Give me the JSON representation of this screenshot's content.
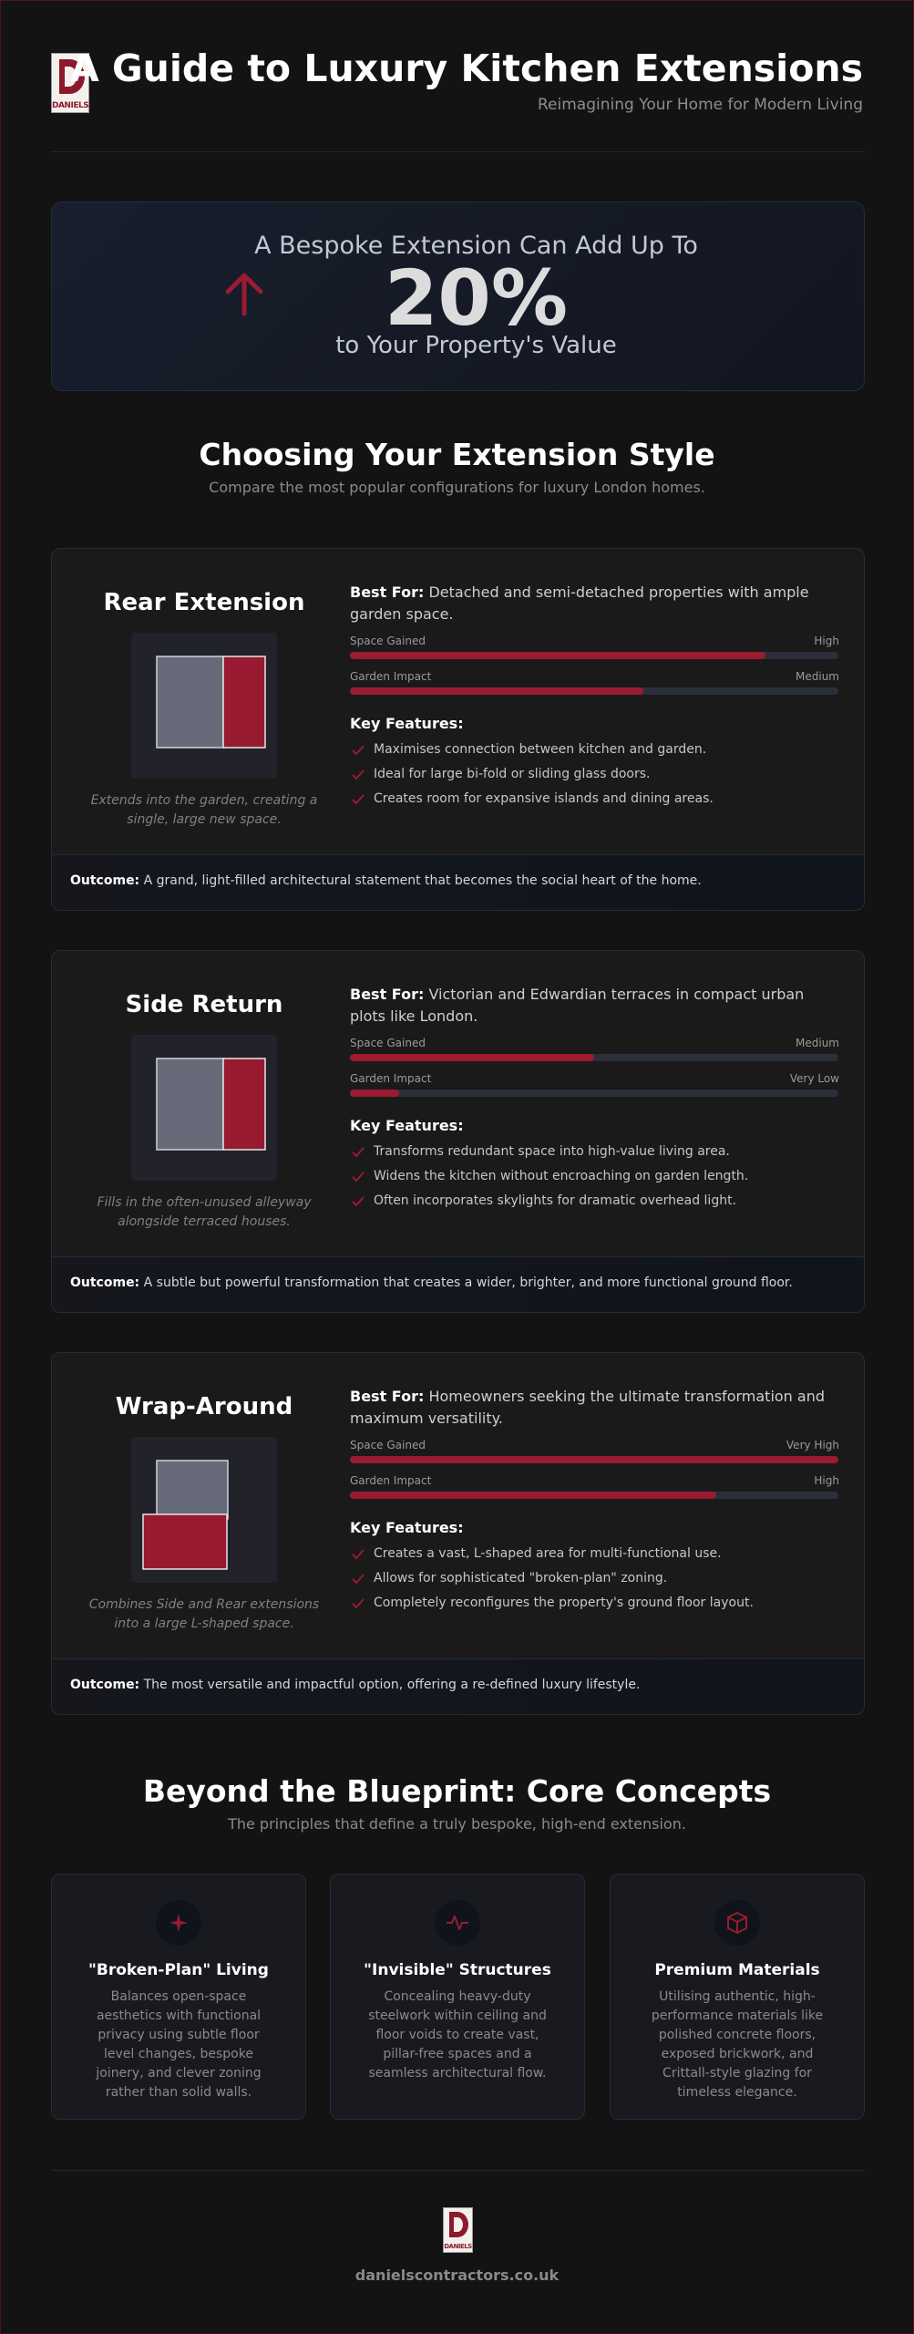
{
  "header": {
    "logo_text": "DANIELS",
    "title": "A Guide to Luxury Kitchen Extensions",
    "subtitle": "Reimagining Your Home for Modern Living"
  },
  "hero": {
    "lead": "A Bespoke Extension Can Add Up To",
    "figure": "20%",
    "tail": "to Your Property's Value"
  },
  "styles_section": {
    "title": "Choosing Your Extension Style",
    "subtitle": "Compare the most popular configurations for luxury London homes.",
    "best_for_label": "Best For:",
    "features_label": "Key Features:",
    "outcome_label": "Outcome:",
    "cards": [
      {
        "title": "Rear Extension",
        "caption": "Extends into the garden, creating a single, large new space.",
        "best_for": "Detached and semi-detached properties with ample garden space.",
        "meters": [
          {
            "label": "Space Gained",
            "level": "High",
            "fill": 85
          },
          {
            "label": "Garden Impact",
            "level": "Medium",
            "fill": 60
          }
        ],
        "features": [
          "Maximises connection between kitchen and garden.",
          "Ideal for large bi-fold or sliding glass doors.",
          "Creates room for expansive islands and dining areas."
        ],
        "outcome": "A grand, light-filled architectural statement that becomes the social heart of the home."
      },
      {
        "title": "Side Return",
        "caption": "Fills in the often-unused alleyway alongside terraced houses.",
        "best_for": "Victorian and Edwardian terraces in compact urban plots like London.",
        "meters": [
          {
            "label": "Space Gained",
            "level": "Medium",
            "fill": 50
          },
          {
            "label": "Garden Impact",
            "level": "Very Low",
            "fill": 10
          }
        ],
        "features": [
          "Transforms redundant space into high-value living area.",
          "Widens the kitchen without encroaching on garden length.",
          "Often incorporates skylights for dramatic overhead light."
        ],
        "outcome": "A subtle but powerful transformation that creates a wider, brighter, and more functional ground floor."
      },
      {
        "title": "Wrap-Around",
        "caption": "Combines Side and Rear extensions into a large L-shaped space.",
        "best_for": "Homeowners seeking the ultimate transformation and maximum versatility.",
        "meters": [
          {
            "label": "Space Gained",
            "level": "Very High",
            "fill": 100
          },
          {
            "label": "Garden Impact",
            "level": "High",
            "fill": 75
          }
        ],
        "features": [
          "Creates a vast, L-shaped area for multi-functional use.",
          "Allows for sophisticated \"broken-plan\" zoning.",
          "Completely reconfigures the property's ground floor layout."
        ],
        "outcome": "The most versatile and impactful option, offering a re-defined luxury lifestyle."
      }
    ]
  },
  "concepts": {
    "title": "Beyond the Blueprint: Core Concepts",
    "subtitle": "The principles that define a truly bespoke, high-end extension.",
    "items": [
      {
        "title": "\"Broken-Plan\" Living",
        "text": "Balances open-space aesthetics with functional privacy using subtle floor level changes, bespoke joinery, and clever zoning rather than solid walls."
      },
      {
        "title": "\"Invisible\" Structures",
        "text": "Concealing heavy-duty steelwork within ceiling and floor voids to create vast, pillar-free spaces and a seamless architectural flow."
      },
      {
        "title": "Premium Materials",
        "text": "Utilising authentic, high-performance materials like polished concrete floors, exposed brickwork, and Crittall-style glazing for timeless elegance."
      }
    ]
  },
  "footer": {
    "logo_text": "DANIELS",
    "url": "danielscontractors.co.uk"
  }
}
